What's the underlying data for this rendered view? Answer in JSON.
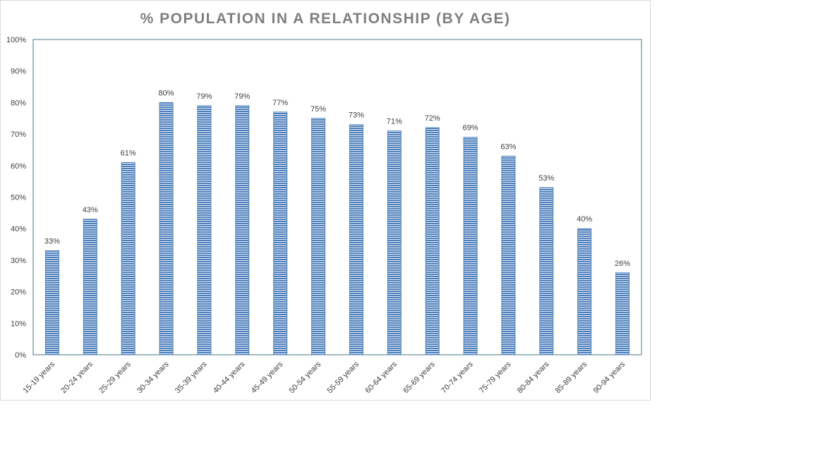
{
  "chart_data": {
    "type": "bar",
    "title": "% POPULATION IN A RELATIONSHIP (BY AGE)",
    "categories": [
      "15-19 years",
      "20-24 years",
      "25-29 years",
      "30-34 years",
      "35-39 years",
      "40-44 years",
      "45-49 years",
      "50-54 years",
      "55-59 years",
      "60-64 years",
      "65-69 years",
      "70-74 years",
      "75-79 years",
      "80-84 years",
      "85-89 years",
      "90-94 years"
    ],
    "values": [
      33,
      43,
      61,
      80,
      79,
      79,
      77,
      75,
      73,
      71,
      72,
      69,
      63,
      53,
      40,
      26
    ],
    "data_labels": [
      "33%",
      "43%",
      "61%",
      "80%",
      "79%",
      "79%",
      "77%",
      "75%",
      "73%",
      "71%",
      "72%",
      "69%",
      "63%",
      "53%",
      "40%",
      "26%"
    ],
    "yticks": [
      "0%",
      "10%",
      "20%",
      "30%",
      "40%",
      "50%",
      "60%",
      "70%",
      "80%",
      "90%",
      "100%"
    ],
    "ylim": [
      0,
      100
    ],
    "xlabel": "",
    "ylabel": "",
    "grid": false,
    "legend": "none",
    "colors": {
      "bar": "#4f81bd",
      "bar_stripe": "#ffffff",
      "plot_border": "#4a7a8c",
      "title": "#7f7f7f",
      "text": "#404040"
    }
  }
}
